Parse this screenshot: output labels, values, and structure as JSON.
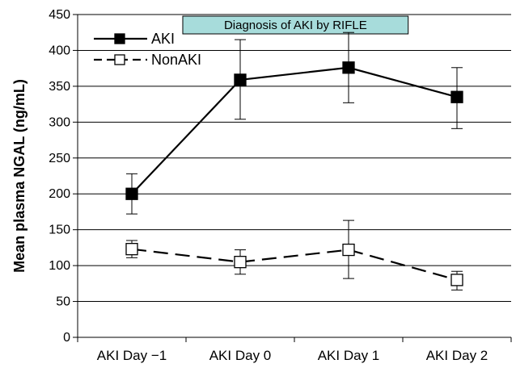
{
  "chart_data": {
    "type": "line",
    "categories": [
      "AKI Day −1",
      "AKI Day 0",
      "AKI Day 1",
      "AKI Day 2"
    ],
    "ylabel": "Mean plasma NGAL (ng/mL)",
    "ylim": [
      0,
      450
    ],
    "yticks": [
      0,
      50,
      100,
      150,
      200,
      250,
      300,
      350,
      400,
      450
    ],
    "grid": "horizontal",
    "legend_position": "top-left",
    "annotation": "Diagnosis of AKI by RIFLE",
    "series": [
      {
        "name": "AKI",
        "line_style": "solid",
        "marker": "filled-square",
        "color": "#000000",
        "values": [
          200,
          359,
          376,
          335
        ],
        "error_low": [
          172,
          304,
          327,
          291
        ],
        "error_high": [
          228,
          415,
          425,
          376
        ]
      },
      {
        "name": "NonAKI",
        "line_style": "dashed",
        "marker": "open-square",
        "color": "#000000",
        "values": [
          123,
          105,
          122,
          80
        ],
        "error_low": [
          111,
          88,
          82,
          66
        ],
        "error_high": [
          135,
          122,
          163,
          92
        ]
      }
    ],
    "colors": {
      "annotation_fill": "#a7dcdb",
      "grid": "#000000"
    }
  }
}
